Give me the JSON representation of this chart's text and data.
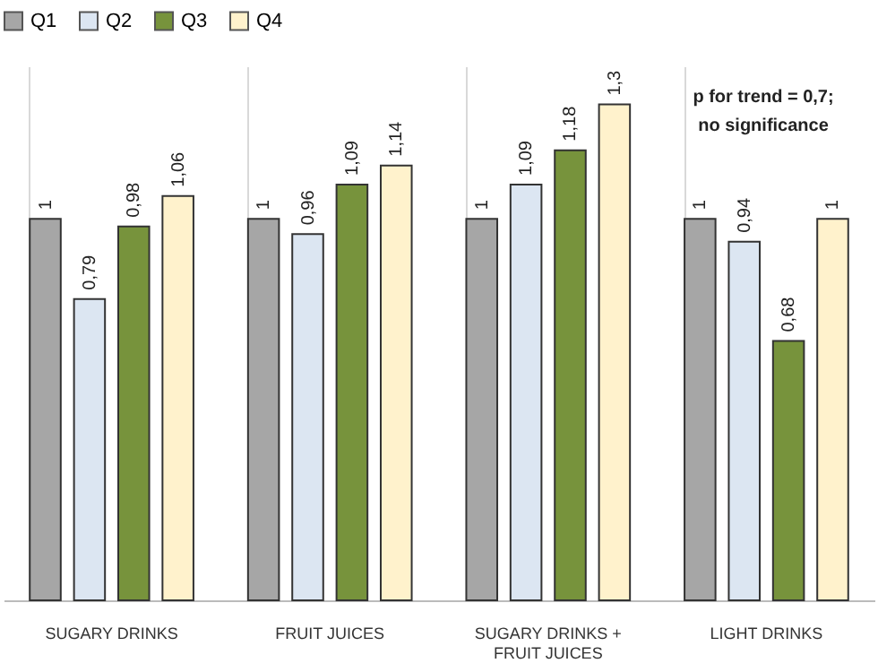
{
  "chart_data": {
    "type": "bar",
    "categories": [
      "SUGARY DRINKS",
      "FRUIT JUICES",
      "SUGARY  DRINKS + FRUIT JUICES",
      "LIGHT DRINKS"
    ],
    "series": [
      {
        "name": "Q1",
        "color": "#a6a6a6",
        "values": [
          1,
          1,
          1,
          1
        ],
        "value_labels": [
          "1",
          "1",
          "1",
          "1"
        ]
      },
      {
        "name": "Q2",
        "color": "#dce6f2",
        "values": [
          0.79,
          0.96,
          1.09,
          0.94
        ],
        "value_labels": [
          "0,79",
          "0,96",
          "1,09",
          "0,94"
        ]
      },
      {
        "name": "Q3",
        "color": "#77933c",
        "values": [
          0.98,
          1.09,
          1.18,
          0.68
        ],
        "value_labels": [
          "0,98",
          "1,09",
          "1,18",
          "0,68"
        ]
      },
      {
        "name": "Q4",
        "color": "#fff2cc",
        "values": [
          1.06,
          1.14,
          1.3,
          1
        ],
        "value_labels": [
          "1,06",
          "1,14",
          "1,3",
          "1"
        ]
      }
    ],
    "ylim": [
      0,
      1.4
    ],
    "tick_labels": "x",
    "grid": "x",
    "legend": "top",
    "annotations": [
      "p for trend = 0,7;",
      "no significance"
    ]
  }
}
